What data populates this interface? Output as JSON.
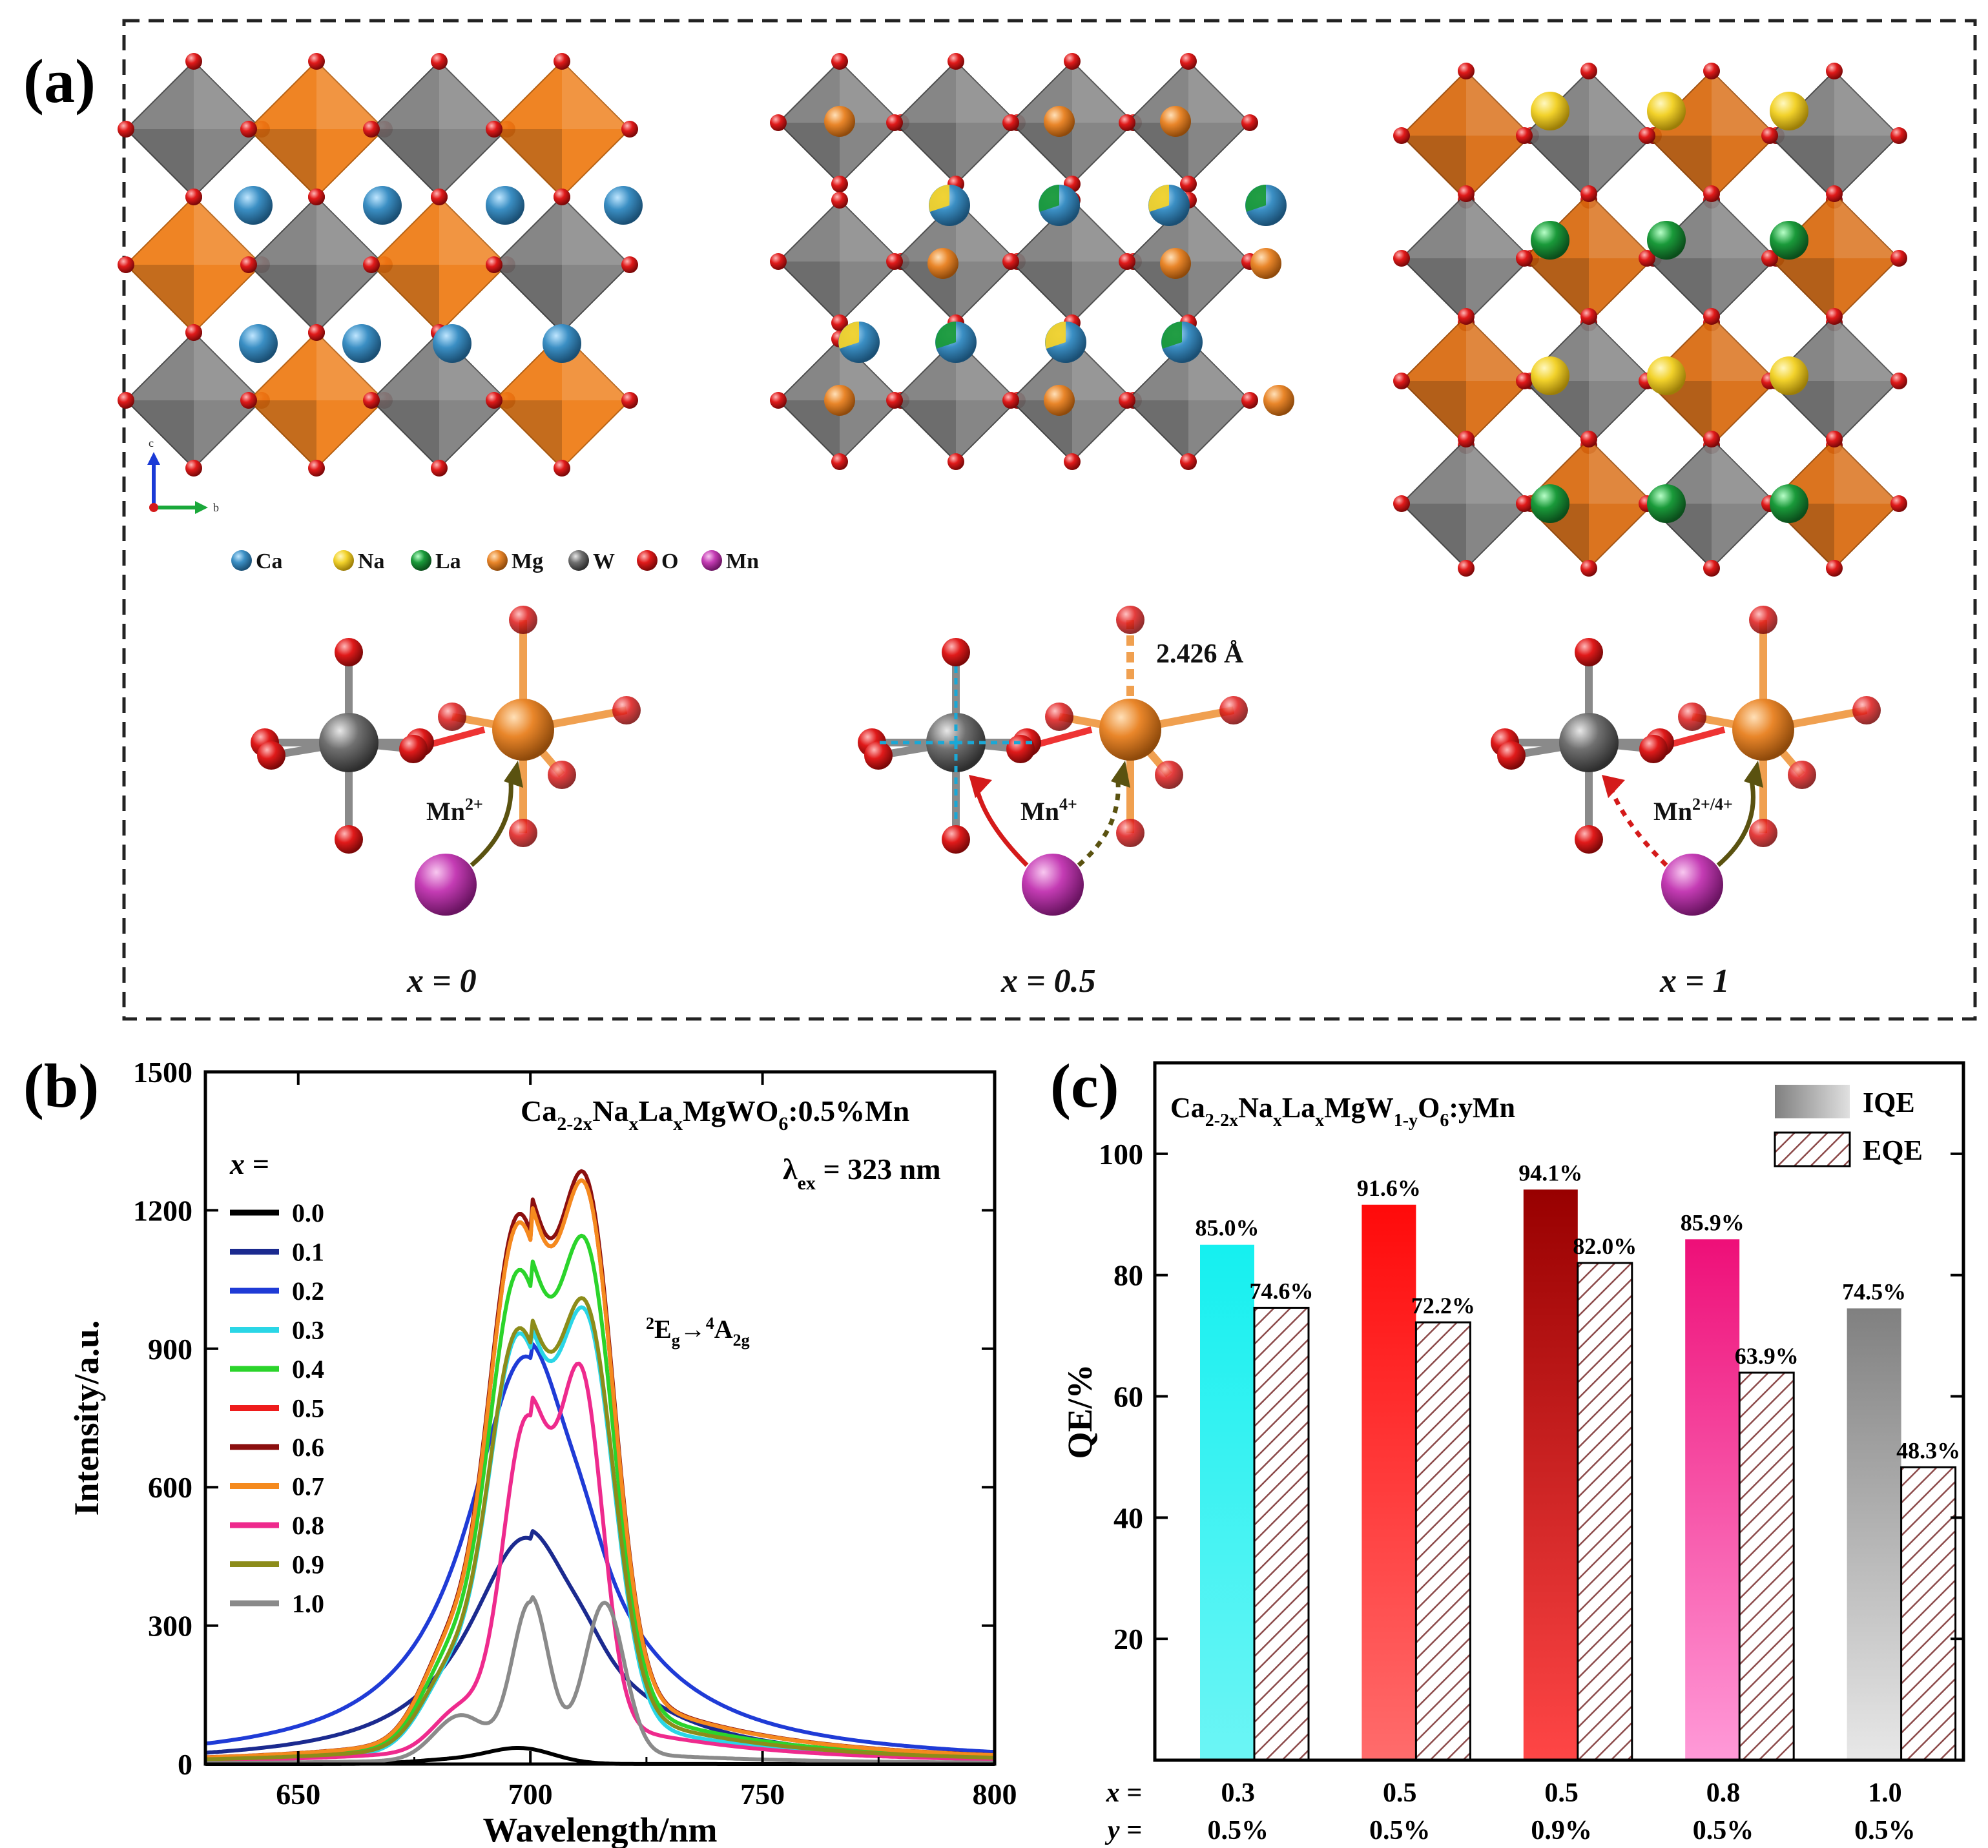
{
  "panel_a": {
    "label": "(a)",
    "legend": [
      {
        "symbol": "Ca",
        "color": "#3b8fc4"
      },
      {
        "symbol": "Na",
        "color": "#f2d22b"
      },
      {
        "symbol": "La",
        "color": "#1a9a3a"
      },
      {
        "symbol": "Mg",
        "color": "#e9862a"
      },
      {
        "symbol": "W",
        "color": "#707070"
      },
      {
        "symbol": "O",
        "color": "#e01a1a"
      },
      {
        "symbol": "Mn",
        "color": "#c43cb4"
      }
    ],
    "structures": [
      {
        "x_label": "x = 0",
        "mn_label": "Mn",
        "mn_charge": "2+"
      },
      {
        "x_label": "x = 0.5",
        "mn_label": "Mn",
        "mn_charge": "4+",
        "bond_label": "2.426 Å"
      },
      {
        "x_label": "x = 1",
        "mn_label": "Mn",
        "mn_charge": "2+/4+"
      }
    ],
    "axis_triad": {
      "up": "c",
      "right": "b"
    }
  },
  "panel_b": {
    "label": "(b)",
    "formula_base": "Ca",
    "formula_parts": [
      {
        "t": "2-2x",
        "type": "sub"
      },
      {
        "t": "Na",
        "type": "norm"
      },
      {
        "t": "x",
        "type": "sub"
      },
      {
        "t": "La",
        "type": "norm"
      },
      {
        "t": "x",
        "type": "sub"
      },
      {
        "t": "MgWO",
        "type": "norm"
      },
      {
        "t": "6",
        "type": "sub"
      },
      {
        "t": ":0.5%Mn",
        "type": "norm"
      }
    ],
    "excitation": {
      "symbol": "λ",
      "sub": "ex",
      "value": " = 323 nm"
    },
    "transition": {
      "pre": "2",
      "a": "E",
      "a_sub": "g",
      "arrow": "→",
      "pre2": "4",
      "b": "A",
      "b_sub": "2g"
    },
    "legend_title": "x =",
    "chart_data": {
      "type": "line",
      "title": "",
      "xlabel": "Wavelength/nm",
      "ylabel": "Intensity/a.u.",
      "xlim": [
        630,
        800
      ],
      "ylim": [
        0,
        1500
      ],
      "xticks": [
        650,
        700,
        750,
        800
      ],
      "yticks": [
        0,
        300,
        600,
        900,
        1200,
        1500
      ],
      "series": [
        {
          "name": "0.0",
          "color": "#000000",
          "peak": 35,
          "shape": "flat",
          "tail": 0.02
        },
        {
          "name": "0.1",
          "color": "#1b2a8f",
          "peak": 505,
          "shape": "round",
          "tail": 0.4
        },
        {
          "name": "0.2",
          "color": "#1f3bd6",
          "peak": 910,
          "shape": "round",
          "tail": 0.4
        },
        {
          "name": "0.3",
          "color": "#2ad6e6",
          "peak": 990,
          "shape": "double",
          "tail": 0.6
        },
        {
          "name": "0.4",
          "color": "#2bd42b",
          "peak": 1145,
          "shape": "double",
          "tail": 0.7
        },
        {
          "name": "0.5",
          "color": "#ee1c1c",
          "peak": 1265,
          "shape": "double",
          "tail": 0.8
        },
        {
          "name": "0.6",
          "color": "#8b0f0f",
          "peak": 1285,
          "shape": "double",
          "tail": 0.8
        },
        {
          "name": "0.7",
          "color": "#f58a1e",
          "peak": 1265,
          "shape": "double",
          "tail": 0.8
        },
        {
          "name": "0.8",
          "color": "#ee2a8d",
          "peak": 868,
          "shape": "double_right",
          "tail": 0.6
        },
        {
          "name": "0.9",
          "color": "#8c8c1a",
          "peak": 1010,
          "shape": "double",
          "tail": 0.7
        },
        {
          "name": "1.0",
          "color": "#8a8a8a",
          "peak": 362,
          "shape": "split",
          "tail": 0.4
        }
      ]
    }
  },
  "panel_c": {
    "label": "(c)",
    "formula_parts": [
      {
        "t": "Ca",
        "type": "norm"
      },
      {
        "t": "2-2x",
        "type": "sub"
      },
      {
        "t": "Na",
        "type": "norm"
      },
      {
        "t": "x",
        "type": "sub"
      },
      {
        "t": "La",
        "type": "norm"
      },
      {
        "t": "x",
        "type": "sub"
      },
      {
        "t": "MgW",
        "type": "norm"
      },
      {
        "t": "1-y",
        "type": "sub"
      },
      {
        "t": "O",
        "type": "norm"
      },
      {
        "t": "6",
        "type": "sub"
      },
      {
        "t": ":yMn",
        "type": "norm"
      }
    ],
    "x_row_label": "x =",
    "y_row_label": "y =",
    "chart_data": {
      "type": "bar",
      "title": "",
      "xlabel": "",
      "ylabel": "QE/%",
      "ylim": [
        0,
        115
      ],
      "yticks": [
        20,
        40,
        60,
        80,
        100
      ],
      "categories": [
        {
          "x": "0.3",
          "y": "0.5%"
        },
        {
          "x": "0.5",
          "y": "0.5%"
        },
        {
          "x": "0.5",
          "y": "0.9%"
        },
        {
          "x": "0.8",
          "y": "0.5%"
        },
        {
          "x": "1.0",
          "y": "0.5%"
        }
      ],
      "series": [
        {
          "name": "IQE",
          "values": [
            85.0,
            91.6,
            94.1,
            85.9,
            74.5
          ],
          "labels": [
            "85.0%",
            "91.6%",
            "94.1%",
            "85.9%",
            "74.5%"
          ],
          "colors": [
            [
              "#15f0f0",
              "#6cf5f5"
            ],
            [
              "#ff0a0a",
              "#ff6c6c"
            ],
            [
              "#980000",
              "#ff4646"
            ],
            [
              "#ee0f78",
              "#ff9ad8"
            ],
            [
              "#808080",
              "#e8e8e8"
            ]
          ]
        },
        {
          "name": "EQE",
          "values": [
            74.6,
            72.2,
            82.0,
            63.9,
            48.3
          ],
          "labels": [
            "74.6%",
            "72.2%",
            "82.0%",
            "63.9%",
            "48.3%"
          ],
          "pattern_color": "#8c4a4a"
        }
      ]
    }
  }
}
